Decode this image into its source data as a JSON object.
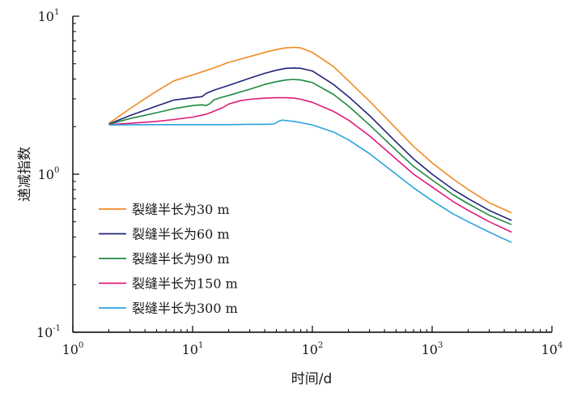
{
  "chart_data": {
    "type": "line",
    "xscale": "log",
    "yscale": "log",
    "xlabel": "时间/d",
    "ylabel": "递减指数",
    "xlim": [
      1,
      10000
    ],
    "ylim": [
      0.1,
      10
    ],
    "x_ticks": [
      {
        "base": "10",
        "exp": "0"
      },
      {
        "base": "10",
        "exp": "1"
      },
      {
        "base": "10",
        "exp": "2"
      },
      {
        "base": "10",
        "exp": "3"
      },
      {
        "base": "10",
        "exp": "4"
      }
    ],
    "y_ticks": [
      {
        "base": "10",
        "exp": "-1"
      },
      {
        "base": "10",
        "exp": "0"
      },
      {
        "base": "10",
        "exp": "1"
      }
    ],
    "grid": false,
    "legend_position": "lower-left",
    "series": [
      {
        "name": "裂缝半长为30 m",
        "color": "#f08a24",
        "points": [
          [
            2,
            2.1
          ],
          [
            3,
            2.6
          ],
          [
            5,
            3.35
          ],
          [
            7,
            3.9
          ],
          [
            10,
            4.25
          ],
          [
            15,
            4.7
          ],
          [
            20,
            5.1
          ],
          [
            30,
            5.55
          ],
          [
            40,
            5.9
          ],
          [
            50,
            6.15
          ],
          [
            60,
            6.3
          ],
          [
            70,
            6.35
          ],
          [
            80,
            6.3
          ],
          [
            100,
            5.9
          ],
          [
            150,
            4.8
          ],
          [
            200,
            3.9
          ],
          [
            300,
            2.9
          ],
          [
            500,
            1.95
          ],
          [
            700,
            1.5
          ],
          [
            1000,
            1.18
          ],
          [
            1500,
            0.93
          ],
          [
            2000,
            0.8
          ],
          [
            3000,
            0.66
          ],
          [
            4600,
            0.57
          ]
        ]
      },
      {
        "name": "裂缝半长为60 m",
        "color": "#22237a",
        "points": [
          [
            2,
            2.08
          ],
          [
            3,
            2.35
          ],
          [
            5,
            2.7
          ],
          [
            7,
            2.95
          ],
          [
            10,
            3.05
          ],
          [
            12,
            3.1
          ],
          [
            13,
            3.25
          ],
          [
            15,
            3.4
          ],
          [
            20,
            3.65
          ],
          [
            30,
            4.05
          ],
          [
            40,
            4.35
          ],
          [
            50,
            4.55
          ],
          [
            60,
            4.68
          ],
          [
            70,
            4.7
          ],
          [
            80,
            4.68
          ],
          [
            100,
            4.5
          ],
          [
            150,
            3.7
          ],
          [
            200,
            3.1
          ],
          [
            300,
            2.35
          ],
          [
            500,
            1.6
          ],
          [
            700,
            1.25
          ],
          [
            1000,
            1.0
          ],
          [
            1500,
            0.8
          ],
          [
            2000,
            0.7
          ],
          [
            3000,
            0.59
          ],
          [
            4600,
            0.51
          ]
        ]
      },
      {
        "name": "裂缝半长为90 m",
        "color": "#1c8a3e",
        "points": [
          [
            2,
            2.07
          ],
          [
            3,
            2.25
          ],
          [
            5,
            2.45
          ],
          [
            7,
            2.6
          ],
          [
            10,
            2.72
          ],
          [
            12,
            2.75
          ],
          [
            13,
            2.72
          ],
          [
            14,
            2.8
          ],
          [
            15,
            2.95
          ],
          [
            17,
            3.05
          ],
          [
            20,
            3.15
          ],
          [
            30,
            3.45
          ],
          [
            40,
            3.7
          ],
          [
            50,
            3.85
          ],
          [
            60,
            3.95
          ],
          [
            70,
            3.98
          ],
          [
            80,
            3.95
          ],
          [
            100,
            3.8
          ],
          [
            150,
            3.2
          ],
          [
            200,
            2.7
          ],
          [
            300,
            2.05
          ],
          [
            500,
            1.42
          ],
          [
            700,
            1.12
          ],
          [
            1000,
            0.92
          ],
          [
            1500,
            0.74
          ],
          [
            2000,
            0.65
          ],
          [
            3000,
            0.55
          ],
          [
            4600,
            0.48
          ]
        ]
      },
      {
        "name": "裂缝半长为150 m",
        "color": "#e0197a",
        "points": [
          [
            2,
            2.06
          ],
          [
            3,
            2.1
          ],
          [
            5,
            2.16
          ],
          [
            7,
            2.22
          ],
          [
            10,
            2.3
          ],
          [
            13,
            2.4
          ],
          [
            15,
            2.5
          ],
          [
            18,
            2.65
          ],
          [
            20,
            2.78
          ],
          [
            25,
            2.92
          ],
          [
            30,
            2.98
          ],
          [
            40,
            3.03
          ],
          [
            50,
            3.05
          ],
          [
            60,
            3.05
          ],
          [
            70,
            3.03
          ],
          [
            80,
            2.98
          ],
          [
            100,
            2.85
          ],
          [
            150,
            2.5
          ],
          [
            200,
            2.2
          ],
          [
            300,
            1.75
          ],
          [
            500,
            1.25
          ],
          [
            700,
            1.0
          ],
          [
            1000,
            0.83
          ],
          [
            1500,
            0.67
          ],
          [
            2000,
            0.59
          ],
          [
            3000,
            0.5
          ],
          [
            4600,
            0.43
          ]
        ]
      },
      {
        "name": "裂缝半长为300 m",
        "color": "#2aa3dc",
        "points": [
          [
            2,
            2.05
          ],
          [
            5,
            2.06
          ],
          [
            10,
            2.06
          ],
          [
            20,
            2.06
          ],
          [
            30,
            2.07
          ],
          [
            40,
            2.07
          ],
          [
            48,
            2.08
          ],
          [
            52,
            2.16
          ],
          [
            56,
            2.2
          ],
          [
            62,
            2.18
          ],
          [
            70,
            2.16
          ],
          [
            80,
            2.12
          ],
          [
            100,
            2.05
          ],
          [
            150,
            1.85
          ],
          [
            200,
            1.65
          ],
          [
            300,
            1.35
          ],
          [
            500,
            1.0
          ],
          [
            700,
            0.82
          ],
          [
            1000,
            0.68
          ],
          [
            1500,
            0.56
          ],
          [
            2000,
            0.5
          ],
          [
            3000,
            0.43
          ],
          [
            4600,
            0.37
          ]
        ]
      }
    ]
  }
}
